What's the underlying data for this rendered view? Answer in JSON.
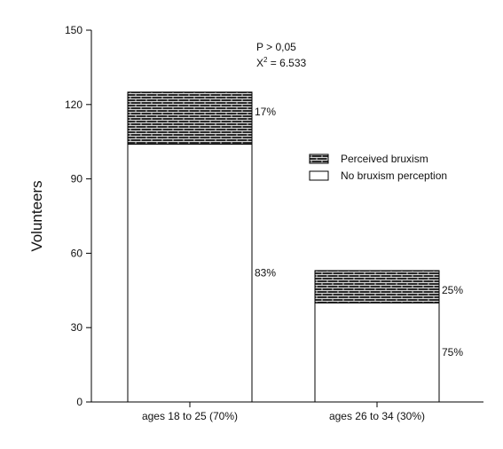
{
  "chart_data": {
    "type": "bar",
    "stacked": true,
    "categories": [
      "ages 18 to 25 (70%)",
      "ages 26 to 34 (30%)"
    ],
    "series": [
      {
        "name": "No bruxism perception",
        "values": [
          104,
          40
        ],
        "pattern": "none",
        "fill": "#ffffff"
      },
      {
        "name": "Perceived bruxism",
        "values": [
          21,
          13
        ],
        "pattern": "brick",
        "fill": "#2b2b2b"
      }
    ],
    "segment_labels": [
      {
        "category": 0,
        "series": 0,
        "text": "83%"
      },
      {
        "category": 0,
        "series": 1,
        "text": "17%"
      },
      {
        "category": 1,
        "series": 0,
        "text": "75%"
      },
      {
        "category": 1,
        "series": 1,
        "text": "25%"
      }
    ],
    "ylabel": "Volunteers",
    "xlabel": "",
    "ylim": [
      0,
      150
    ],
    "yticks": [
      0,
      30,
      60,
      90,
      120,
      150
    ],
    "grid": false,
    "legend_position": "right-middle",
    "stats": {
      "p_text": "P > 0,05",
      "chi_prefix": "X",
      "chi_sup": "2",
      "chi_value": " = 6.533"
    },
    "colors": {
      "axis": "#000000",
      "bar_stroke": "#000000"
    }
  }
}
